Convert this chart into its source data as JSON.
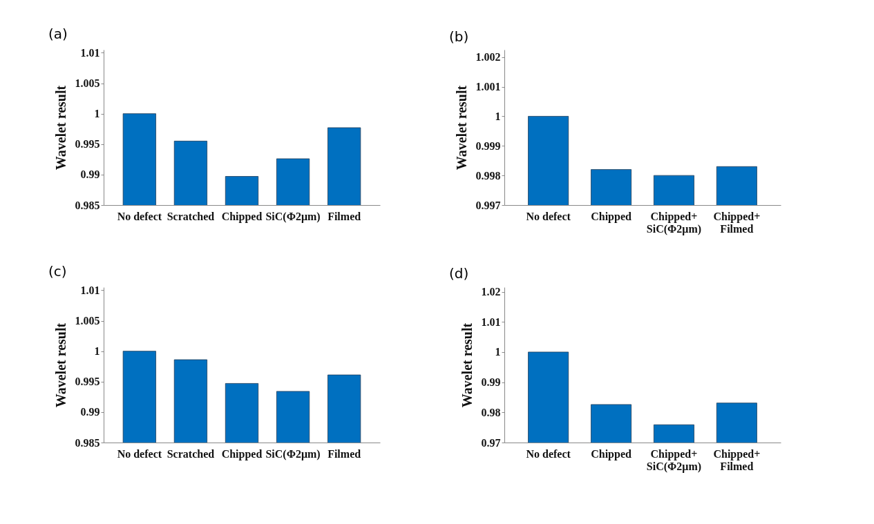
{
  "chart_data": [
    {
      "type": "bar",
      "title": "(a)",
      "ylabel": "Wavelet result",
      "categories": [
        "No defect",
        "Scratched",
        "Chipped",
        "SiC(Φ2μm)",
        "Filmed"
      ],
      "values": [
        1.0,
        0.9955,
        0.9897,
        0.9926,
        0.9977
      ],
      "color": "#0070c0",
      "ylim": [
        0.985,
        1.0105
      ],
      "yticks": [
        0.985,
        0.99,
        0.995,
        1,
        1.005,
        1.01
      ]
    },
    {
      "type": "bar",
      "title": "(b)",
      "ylabel": "Wavelet result",
      "categories": [
        "No defect",
        "Chipped",
        "Chipped+\nSiC(Φ2μm)",
        "Chipped+\nFilmed"
      ],
      "values": [
        1.0,
        0.9982,
        0.998,
        0.9983
      ],
      "color": "#0070c0",
      "ylim": [
        0.997,
        1.00225
      ],
      "yticks": [
        0.997,
        0.998,
        0.999,
        1,
        1.001,
        1.002
      ]
    },
    {
      "type": "bar",
      "title": "(c)",
      "ylabel": "Wavelet result",
      "categories": [
        "No defect",
        "Scratched",
        "Chipped",
        "SiC(Φ2μm)",
        "Filmed"
      ],
      "values": [
        1.0,
        0.9986,
        0.9947,
        0.9934,
        0.9961
      ],
      "color": "#0070c0",
      "ylim": [
        0.985,
        1.0105
      ],
      "yticks": [
        0.985,
        0.99,
        0.995,
        1,
        1.005,
        1.01
      ]
    },
    {
      "type": "bar",
      "title": "(d)",
      "ylabel": "Wavelet result",
      "categories": [
        "No defect",
        "Chipped",
        "Chipped+\nSiC(Φ2μm)",
        "Chipped+\nFilmed"
      ],
      "values": [
        1.0,
        0.9826,
        0.9759,
        0.9831
      ],
      "color": "#0070c0",
      "ylim": [
        0.97,
        1.0215
      ],
      "yticks": [
        0.97,
        0.98,
        0.99,
        1,
        1.01,
        1.02
      ]
    }
  ]
}
